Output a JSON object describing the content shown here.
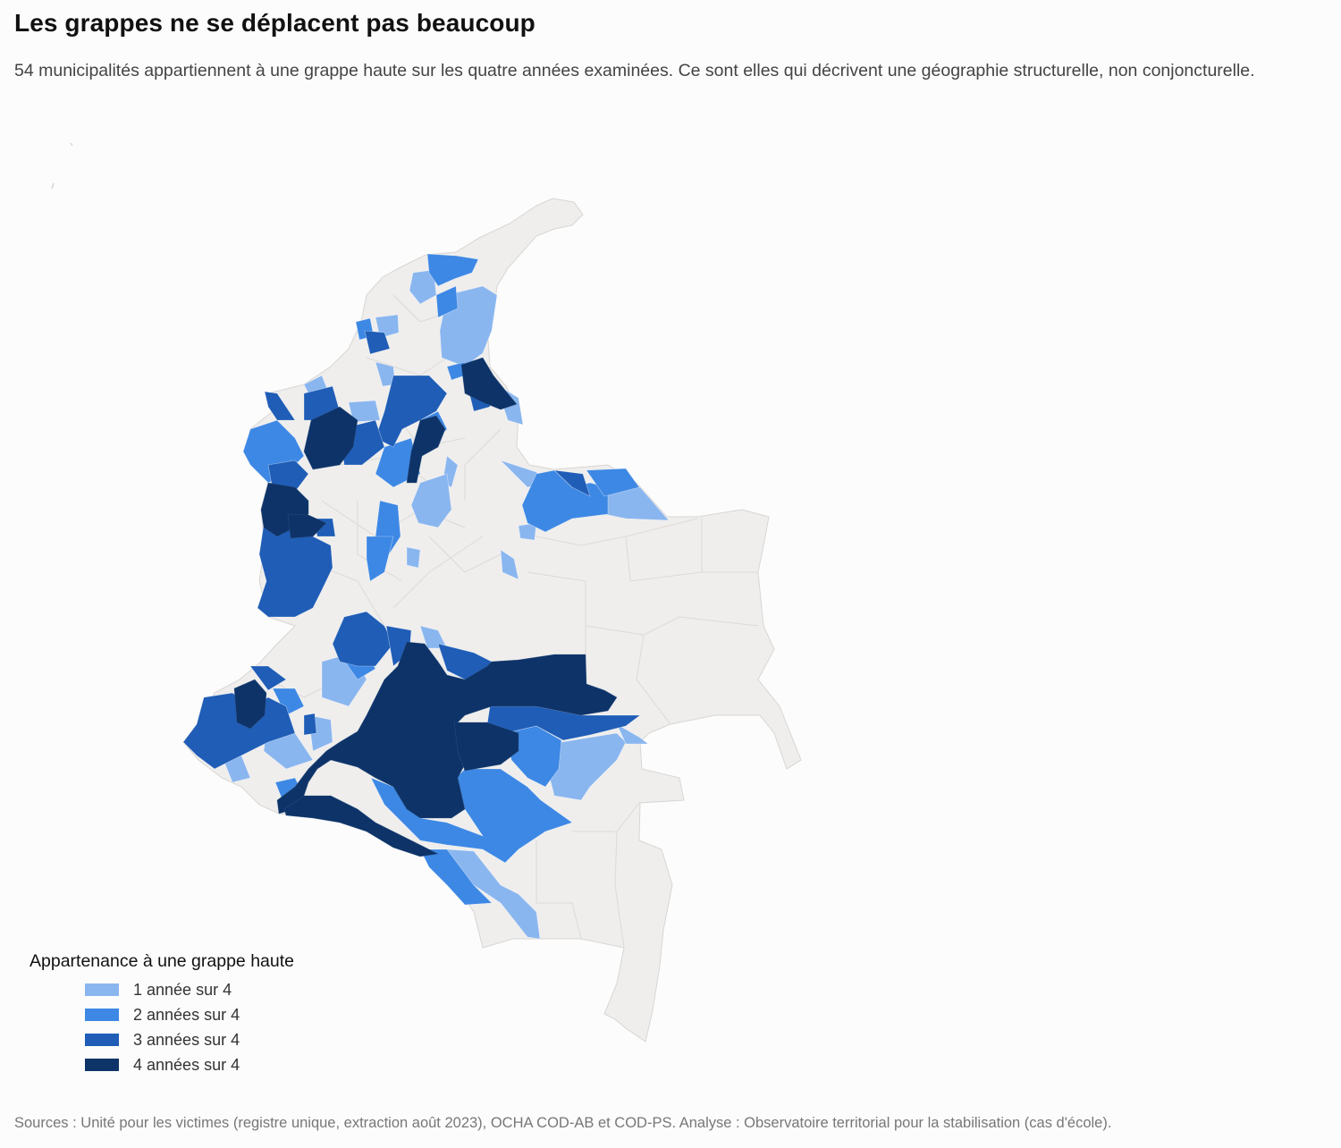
{
  "header": {
    "title": "Les grappes ne se déplacent pas beaucoup",
    "subtitle": "54 municipalités appartiennent à une grappe haute sur les quatre années examinées. Ce sont elles qui décrivent une géographie structurelle, non conjoncturelle."
  },
  "legend": {
    "title": "Appartenance à une grappe haute",
    "items": [
      {
        "label": "1 année sur 4",
        "color": "#8ab6ef"
      },
      {
        "label": "2 années sur 4",
        "color": "#3d88e4"
      },
      {
        "label": "3 années sur 4",
        "color": "#1f5db6"
      },
      {
        "label": "4 années sur 4",
        "color": "#0d3368"
      }
    ]
  },
  "map": {
    "base_color": "#efeeed",
    "border_color": "#d8d6d3"
  },
  "footer": {
    "source": "Sources : Unité pour les victimes (registre unique, extraction août 2023), OCHA COD-AB et COD-PS. Analyse : Observatoire territorial pour la stabilisation (cas d'école)."
  }
}
